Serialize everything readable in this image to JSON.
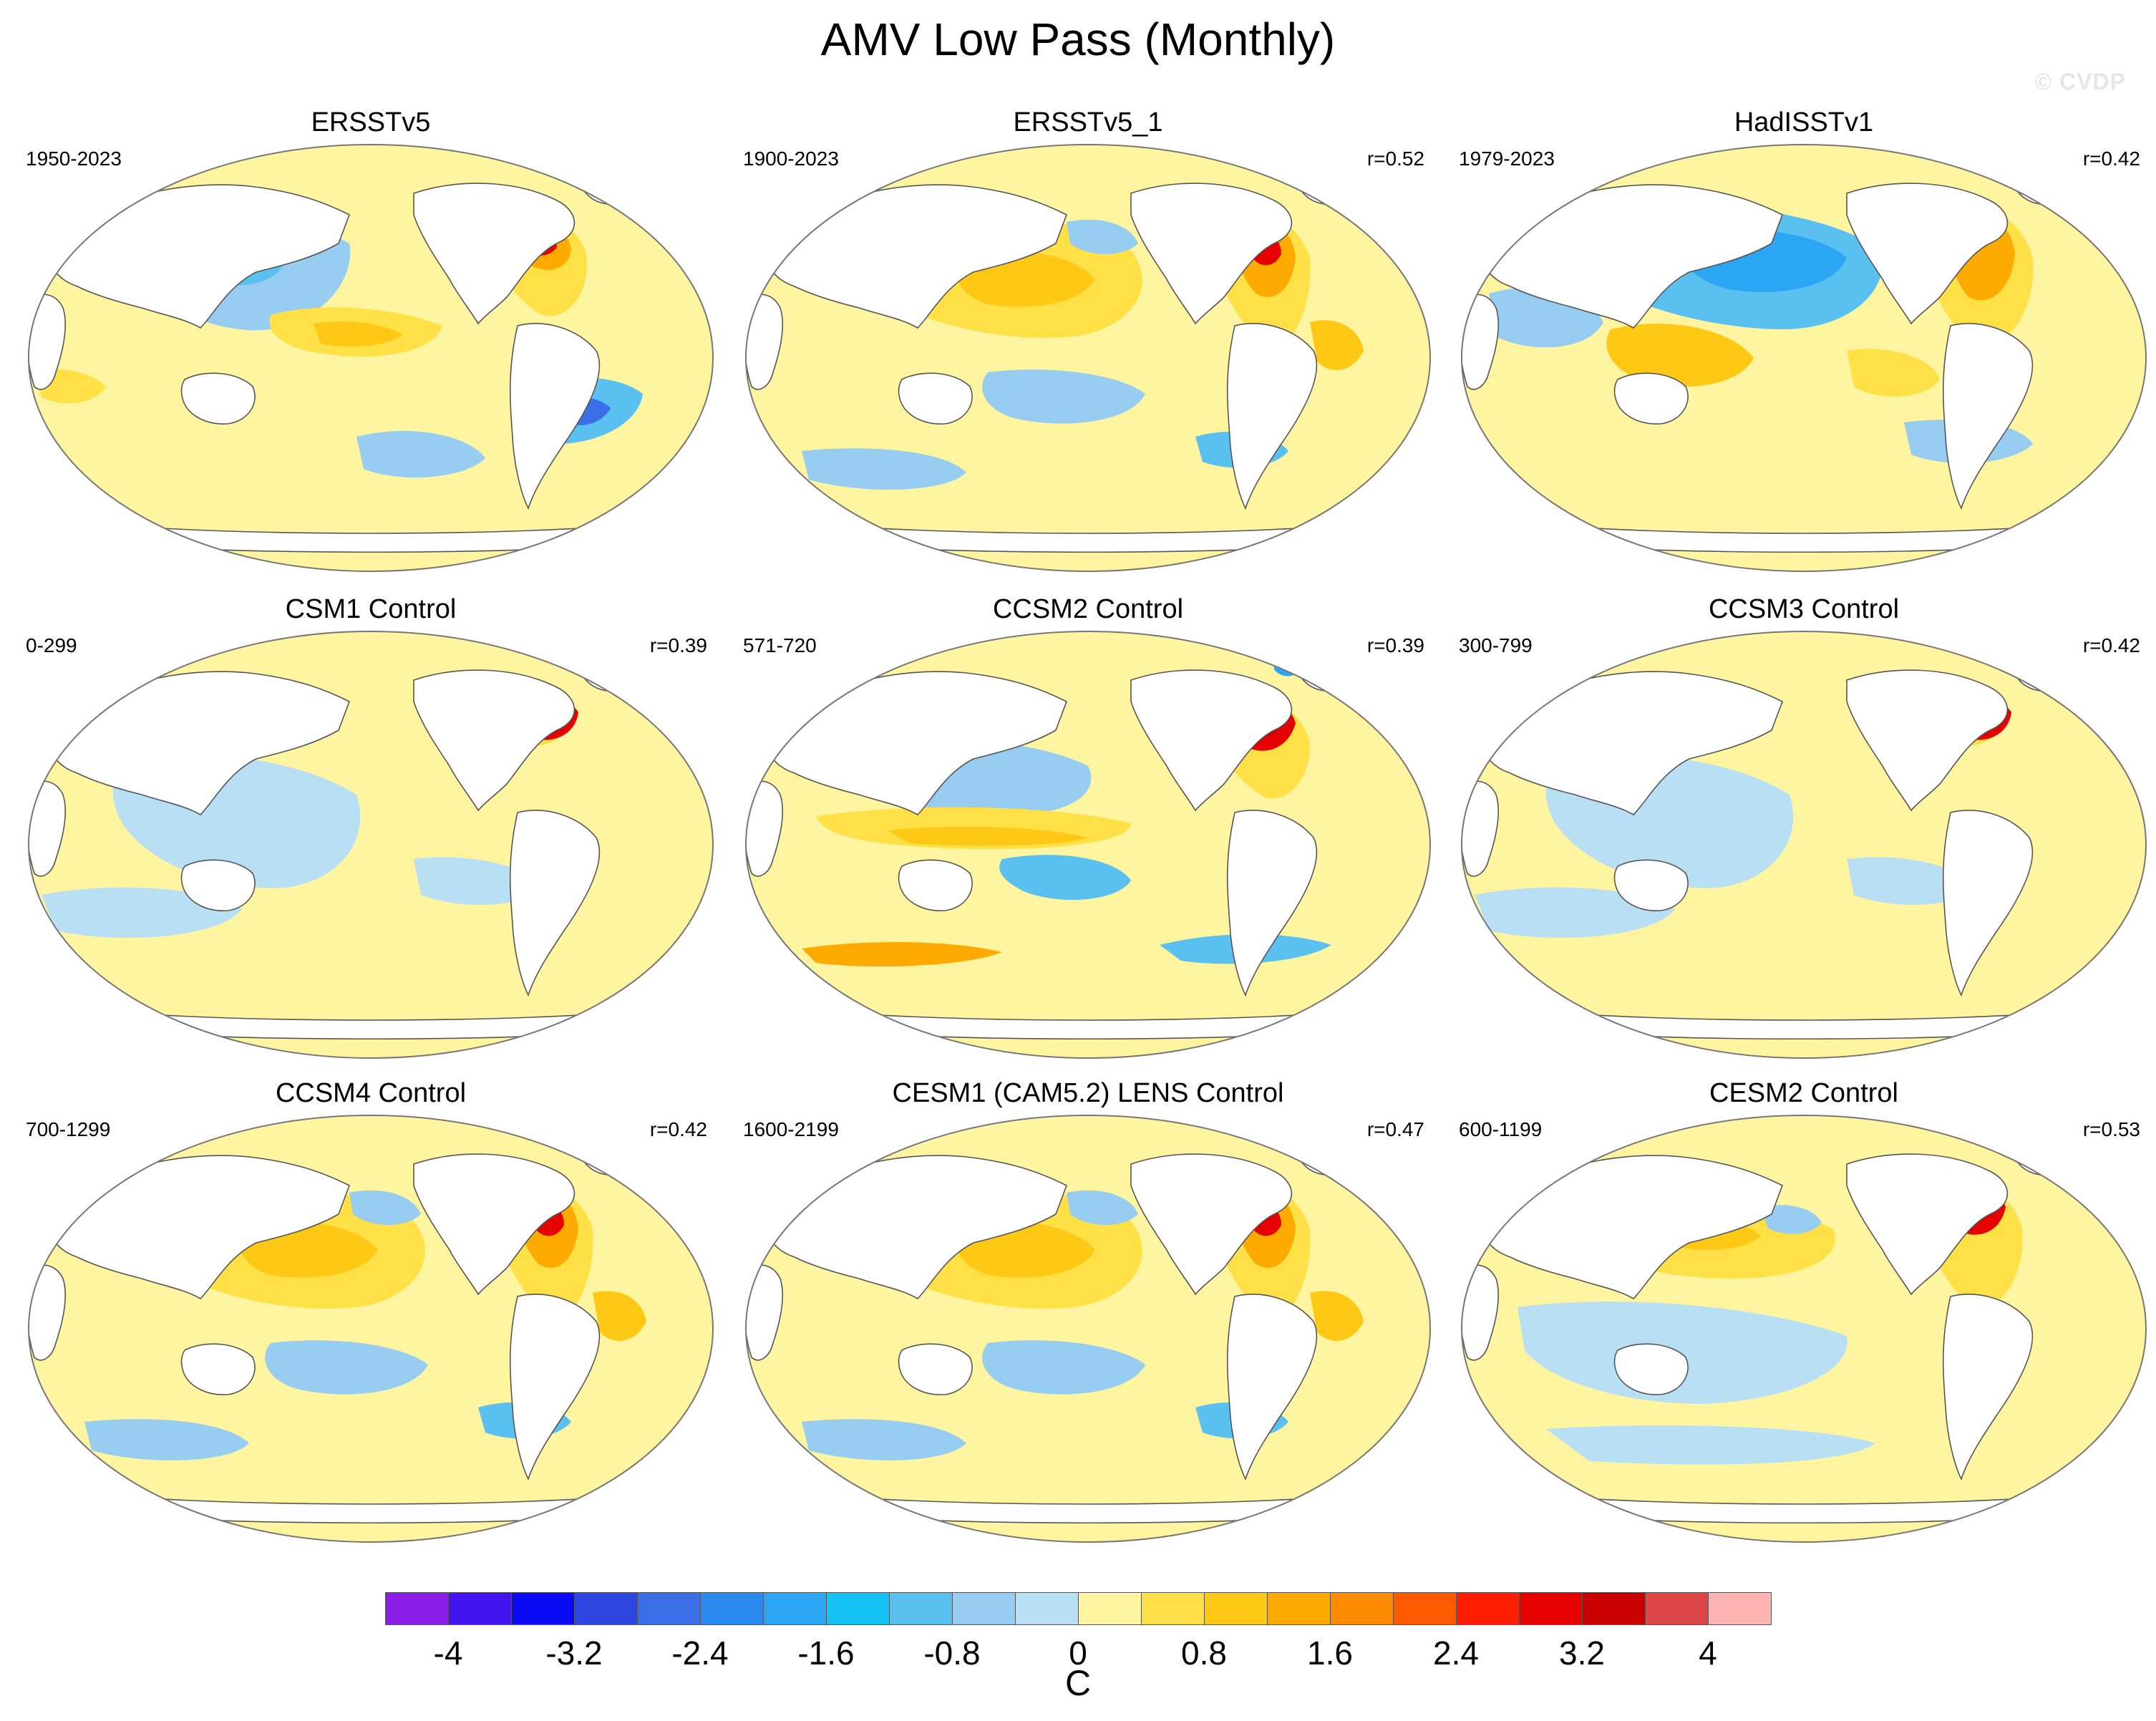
{
  "title": "AMV Low Pass (Monthly)",
  "watermark": "© CVDP",
  "panels": [
    {
      "title": "ERSSTv5",
      "years": "1950-2023",
      "corr": "",
      "pattern": "pdo"
    },
    {
      "title": "ERSSTv5_1",
      "years": "1900-2023",
      "corr": "r=0.52",
      "pattern": "warm"
    },
    {
      "title": "HadISSTv1",
      "years": "1979-2023",
      "corr": "r=0.42",
      "pattern": "coolpac"
    },
    {
      "title": "CSM1 Control",
      "years": "0-299",
      "corr": "r=0.39",
      "pattern": "weak"
    },
    {
      "title": "CCSM2 Control",
      "years": "571-720",
      "corr": "r=0.39",
      "pattern": "banded"
    },
    {
      "title": "CCSM3 Control",
      "years": "300-799",
      "corr": "r=0.42",
      "pattern": "weak"
    },
    {
      "title": "CCSM4 Control",
      "years": "700-1299",
      "corr": "r=0.42",
      "pattern": "warm"
    },
    {
      "title": "CESM1 (CAM5.2) LENS Control",
      "years": "1600-2199",
      "corr": "r=0.47",
      "pattern": "warm"
    },
    {
      "title": "CESM2 Control",
      "years": "600-1199",
      "corr": "r=0.53",
      "pattern": "mixed"
    }
  ],
  "colorbar": {
    "units": "C",
    "tick_labels": [
      "-4",
      "-3.2",
      "-2.4",
      "-1.6",
      "-0.8",
      "0",
      "0.8",
      "1.6",
      "2.4",
      "3.2",
      "4"
    ],
    "colors": [
      "#8a1ee6",
      "#4214f0",
      "#0a0af5",
      "#2e46e0",
      "#3a6ee6",
      "#2a8af0",
      "#2aa6f5",
      "#14c2f5",
      "#5ac0f0",
      "#96cdf0",
      "#b9dff5",
      "#fff5a0",
      "#ffe046",
      "#ffc814",
      "#ffaa00",
      "#ff8c00",
      "#ff5a00",
      "#ff1e00",
      "#e60000",
      "#c80000",
      "#dc4646",
      "#ffb4b4"
    ]
  }
}
